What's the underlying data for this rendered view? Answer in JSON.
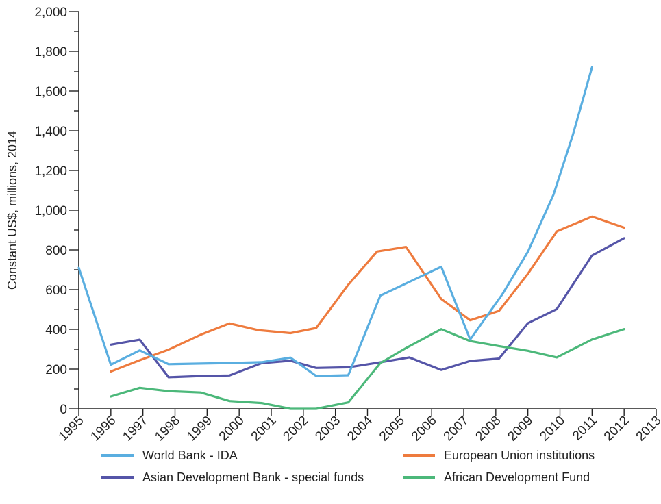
{
  "chart_data": {
    "type": "line",
    "title": "",
    "xlabel": "",
    "ylabel": "Constant US$, millions, 2014",
    "x_ticks": [
      "1995",
      "1996",
      "1997",
      "1998",
      "1999",
      "2000",
      "2001",
      "2002",
      "2003",
      "2004",
      "2005",
      "2006",
      "2007",
      "2008",
      "2009",
      "2010",
      "2011",
      "2012",
      "2013"
    ],
    "y_ticks": [
      "0",
      "200",
      "400",
      "600",
      "800",
      "1,000",
      "1,200",
      "1,400",
      "1,600",
      "1,800",
      "2,000"
    ],
    "xlim": [
      1995,
      2013
    ],
    "ylim": [
      0,
      2000
    ],
    "grid": false,
    "legend_position": "bottom",
    "series": [
      {
        "name": "World Bank - IDA",
        "color": "#5aaee0",
        "points": [
          [
            1995,
            710
          ],
          [
            1996,
            222
          ],
          [
            1996.9,
            294
          ],
          [
            1997.8,
            225
          ],
          [
            1998.8,
            228
          ],
          [
            1999.8,
            231
          ],
          [
            2000.7,
            235
          ],
          [
            2001.6,
            258
          ],
          [
            2002.4,
            165
          ],
          [
            2003.4,
            169
          ],
          [
            2004.4,
            570
          ],
          [
            2006.3,
            715
          ],
          [
            2007.2,
            349
          ],
          [
            2008.2,
            576
          ],
          [
            2009.0,
            791
          ],
          [
            2009.8,
            1079
          ],
          [
            2010.4,
            1378
          ],
          [
            2011.0,
            1720
          ]
        ]
      },
      {
        "name": "European Union institutions",
        "color": "#ee7b3e",
        "points": [
          [
            1996,
            188
          ],
          [
            1996.9,
            245
          ],
          [
            1997.8,
            298
          ],
          [
            1998.8,
            373
          ],
          [
            1999.7,
            430
          ],
          [
            2000.6,
            396
          ],
          [
            2001.6,
            381
          ],
          [
            2002.4,
            407
          ],
          [
            2003.4,
            625
          ],
          [
            2004.3,
            792
          ],
          [
            2005.2,
            815
          ],
          [
            2006.3,
            553
          ],
          [
            2007.2,
            446
          ],
          [
            2008.1,
            493
          ],
          [
            2009.0,
            680
          ],
          [
            2009.9,
            893
          ],
          [
            2011.0,
            968
          ],
          [
            2012.0,
            912
          ]
        ]
      },
      {
        "name": "Asian Development Bank - special funds",
        "color": "#5555a8",
        "points": [
          [
            1996,
            323
          ],
          [
            1996.9,
            348
          ],
          [
            1997.8,
            159
          ],
          [
            1998.8,
            165
          ],
          [
            1999.7,
            168
          ],
          [
            2000.7,
            230
          ],
          [
            2001.6,
            242
          ],
          [
            2002.4,
            206
          ],
          [
            2003.4,
            209
          ],
          [
            2004.4,
            234
          ],
          [
            2005.3,
            259
          ],
          [
            2006.3,
            196
          ],
          [
            2007.2,
            241
          ],
          [
            2008.1,
            253
          ],
          [
            2009.0,
            431
          ],
          [
            2009.9,
            502
          ],
          [
            2011.0,
            772
          ],
          [
            2012.0,
            859
          ]
        ]
      },
      {
        "name": "African Development Fund",
        "color": "#4cb87a",
        "points": [
          [
            1996,
            62
          ],
          [
            1996.9,
            106
          ],
          [
            1997.8,
            89
          ],
          [
            1998.8,
            82
          ],
          [
            1999.7,
            39
          ],
          [
            2000.7,
            29
          ],
          [
            2001.6,
            0
          ],
          [
            2002.4,
            0
          ],
          [
            2003.4,
            32
          ],
          [
            2004.4,
            230
          ],
          [
            2005.2,
            306
          ],
          [
            2006.3,
            401
          ],
          [
            2007.2,
            341
          ],
          [
            2008.1,
            316
          ],
          [
            2009.0,
            292
          ],
          [
            2009.9,
            259
          ],
          [
            2011.0,
            349
          ],
          [
            2012.0,
            401
          ]
        ]
      }
    ]
  }
}
